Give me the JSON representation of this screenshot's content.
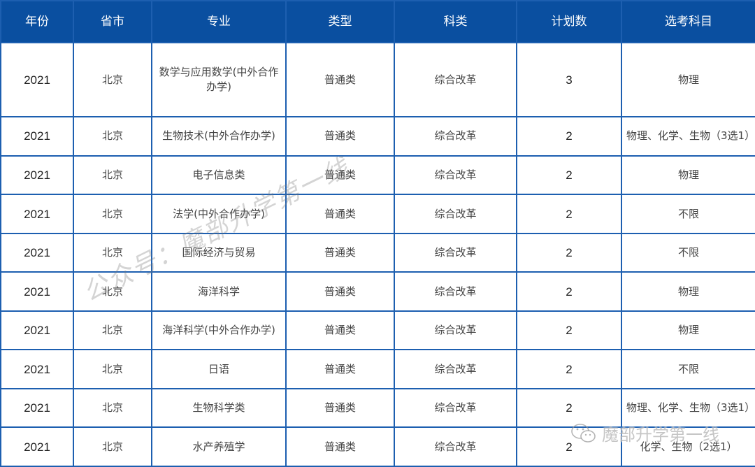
{
  "colors": {
    "header_bg": "#0a4fa0",
    "border": "#1d5fb0",
    "header_text": "#ffffff"
  },
  "headers": [
    "年份",
    "省市",
    "专业",
    "类型",
    "科类",
    "计划数",
    "选考科目"
  ],
  "rows": [
    [
      "2021",
      "北京",
      "数学与应用数学(中外合作办学)",
      "普通类",
      "综合改革",
      "3",
      "物理"
    ],
    [
      "2021",
      "北京",
      "生物技术(中外合作办学)",
      "普通类",
      "综合改革",
      "2",
      "物理、化学、生物（3选1）"
    ],
    [
      "2021",
      "北京",
      "电子信息类",
      "普通类",
      "综合改革",
      "2",
      "物理"
    ],
    [
      "2021",
      "北京",
      "法学(中外合作办学)",
      "普通类",
      "综合改革",
      "2",
      "不限"
    ],
    [
      "2021",
      "北京",
      "国际经济与贸易",
      "普通类",
      "综合改革",
      "2",
      "不限"
    ],
    [
      "2021",
      "北京",
      "海洋科学",
      "普通类",
      "综合改革",
      "2",
      "物理"
    ],
    [
      "2021",
      "北京",
      "海洋科学(中外合作办学)",
      "普通类",
      "综合改革",
      "2",
      "物理"
    ],
    [
      "2021",
      "北京",
      "日语",
      "普通类",
      "综合改革",
      "2",
      "不限"
    ],
    [
      "2021",
      "北京",
      "生物科学类",
      "普通类",
      "综合改革",
      "2",
      "物理、化学、生物（3选1）"
    ],
    [
      "2021",
      "北京",
      "水产养殖学",
      "普通类",
      "综合改革",
      "2",
      "化学、生物（2选1）"
    ]
  ],
  "watermark": {
    "diagonal": "公众号：魔部升学第一线",
    "corner": "魔部升学第一线",
    "corner_icon": "wechat-icon"
  }
}
